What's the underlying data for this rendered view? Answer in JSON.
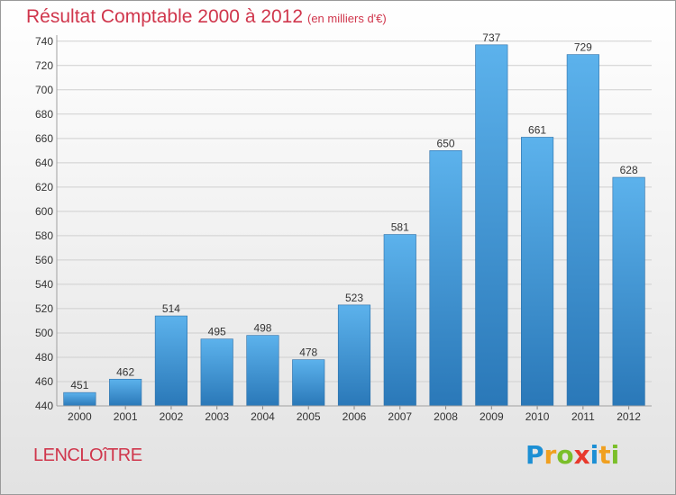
{
  "chart_data": {
    "type": "bar",
    "title": "Résultat Comptable 2000 à 2012",
    "subtitle": "(en milliers d'€)",
    "categories": [
      "2000",
      "2001",
      "2002",
      "2003",
      "2004",
      "2005",
      "2006",
      "2007",
      "2008",
      "2009",
      "2010",
      "2011",
      "2012"
    ],
    "values": [
      451,
      462,
      514,
      495,
      498,
      478,
      523,
      581,
      650,
      737,
      661,
      729,
      628
    ],
    "ylim": [
      440,
      745
    ],
    "yticks": [
      440,
      460,
      480,
      500,
      520,
      540,
      560,
      580,
      600,
      620,
      640,
      660,
      680,
      700,
      720,
      740
    ],
    "xlabel": "",
    "ylabel": "",
    "grid": true,
    "bar_color": "#4a9fe0"
  },
  "place_label": "LENCLOîTRE",
  "brand": {
    "letters": [
      "P",
      "r",
      "o",
      "x",
      "i",
      "t",
      "i"
    ],
    "colors": [
      "#1c8fd4",
      "#f0a020",
      "#7bbf2a",
      "#e8392c",
      "#1c8fd4",
      "#f0a020",
      "#7bbf2a"
    ]
  },
  "colors": {
    "accent": "#d0364c"
  }
}
